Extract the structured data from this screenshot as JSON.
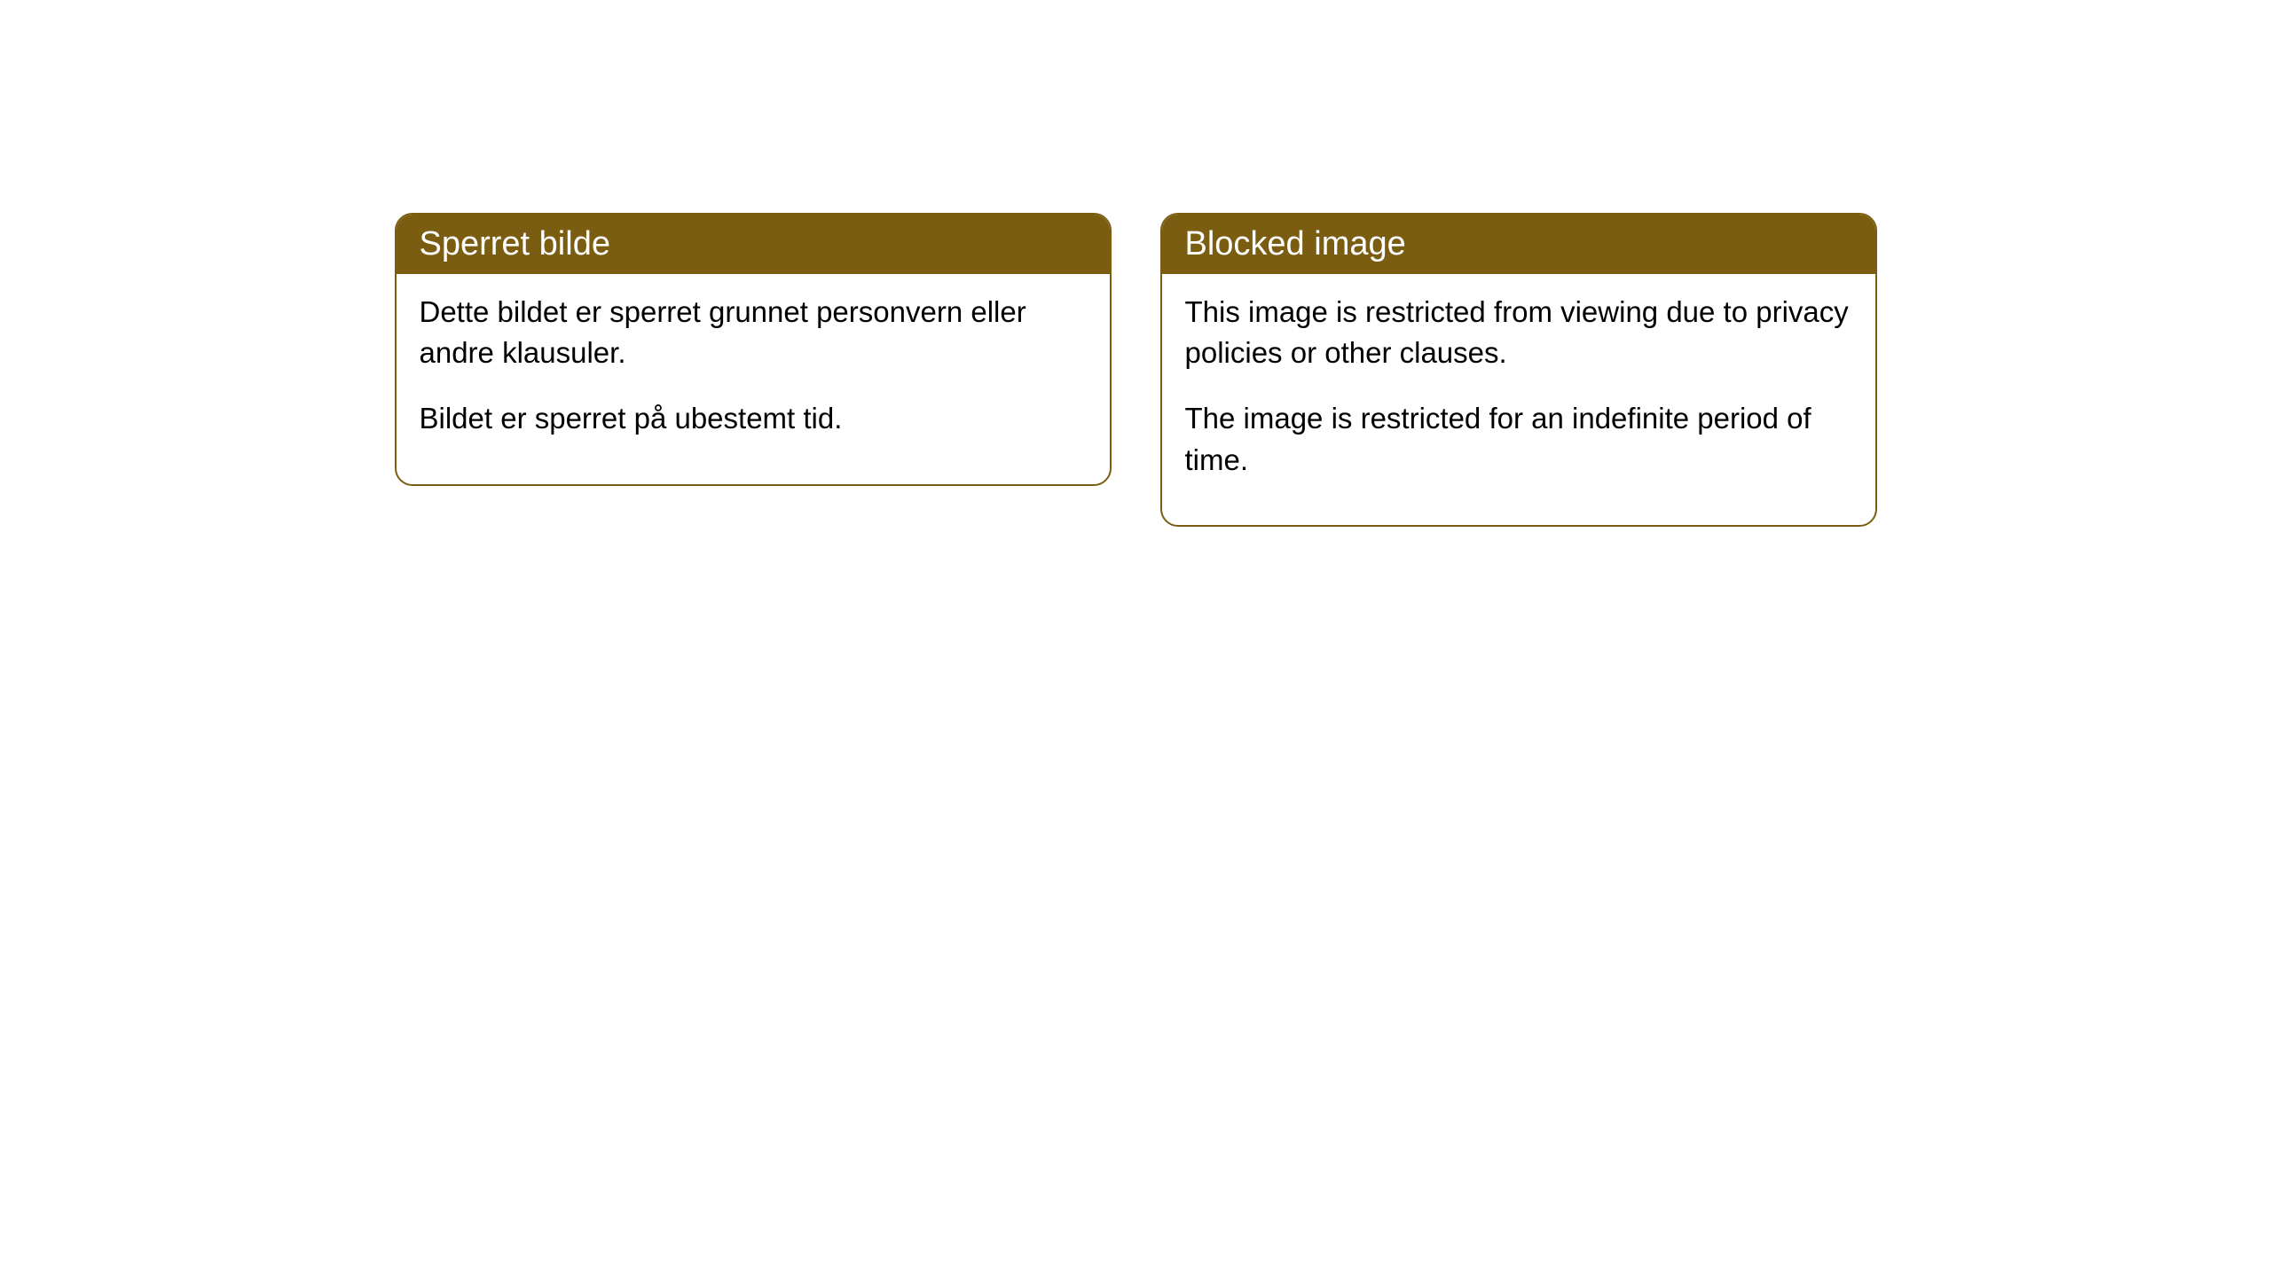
{
  "cards": [
    {
      "title": "Sperret bilde",
      "paragraph1": "Dette bildet er sperret grunnet personvern eller andre klausuler.",
      "paragraph2": "Bildet er sperret på ubestemt tid."
    },
    {
      "title": "Blocked image",
      "paragraph1": "This image is restricted from viewing due to privacy policies or other clauses.",
      "paragraph2": "The image is restricted for an indefinite period of time."
    }
  ],
  "styling": {
    "header_bg_color": "#7a5d10",
    "header_text_color": "#ffffff",
    "border_color": "#7a5d10",
    "body_bg_color": "#ffffff",
    "body_text_color": "#000000",
    "border_radius": 20,
    "header_fontsize": 38,
    "body_fontsize": 33
  }
}
